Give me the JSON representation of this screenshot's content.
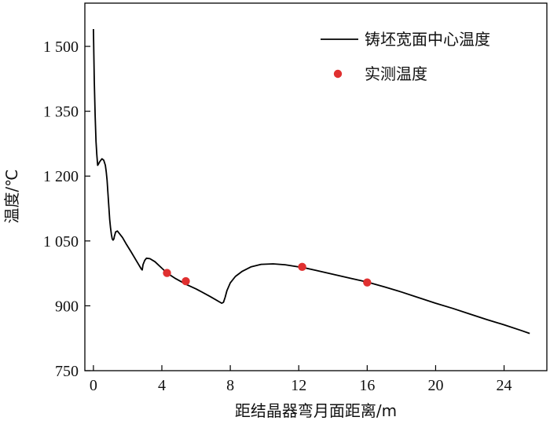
{
  "chart_data": {
    "type": "line",
    "xlabel": "距结晶器弯月面距离/m",
    "ylabel": "温度/℃",
    "xlim": [
      -0.5,
      26.5
    ],
    "ylim": [
      750,
      1600
    ],
    "xticks": [
      0,
      4,
      8,
      12,
      16,
      20,
      24
    ],
    "yticks": [
      750,
      900,
      1050,
      1200,
      1350,
      1500
    ],
    "ytick_labels": [
      "750",
      "900",
      "1 050",
      "1 200",
      "1 350",
      "1 500"
    ],
    "grid": false,
    "legend_position": "top-right",
    "series": [
      {
        "name": "铸坯宽面中心温度",
        "style": "line",
        "color": "#000000",
        "x": [
          0.0,
          0.05,
          0.1,
          0.15,
          0.2,
          0.25,
          0.3,
          0.35,
          0.4,
          0.5,
          0.6,
          0.7,
          0.75,
          0.8,
          0.85,
          0.9,
          0.95,
          1.0,
          1.05,
          1.1,
          1.15,
          1.2,
          1.22,
          1.3,
          1.4,
          1.5,
          1.7,
          1.9,
          2.2,
          2.5,
          2.8,
          2.85,
          2.9,
          3.0,
          3.1,
          3.3,
          3.6,
          4.0,
          4.3,
          4.8,
          5.4,
          6.0,
          6.8,
          7.5,
          7.6,
          7.7,
          7.8,
          8.0,
          8.3,
          8.7,
          9.2,
          9.8,
          10.5,
          11.2,
          12.0,
          12.2,
          13.0,
          14.0,
          15.0,
          16.0,
          17.0,
          18.0,
          19.0,
          20.0,
          21.0,
          22.0,
          23.0,
          24.0,
          25.0,
          25.5
        ],
        "values": [
          1540,
          1420,
          1340,
          1280,
          1250,
          1225,
          1228,
          1232,
          1235,
          1240,
          1237,
          1225,
          1210,
          1190,
          1160,
          1130,
          1100,
          1080,
          1065,
          1055,
          1052,
          1055,
          1060,
          1071,
          1073,
          1068,
          1058,
          1044,
          1025,
          1005,
          985,
          983,
          995,
          1005,
          1010,
          1009,
          1002,
          987,
          976,
          963,
          950,
          939,
          922,
          906,
          908,
          920,
          935,
          953,
          968,
          980,
          990,
          996,
          997,
          995,
          990,
          989,
          982,
          973,
          964,
          955,
          944,
          932,
          919,
          906,
          894,
          881,
          868,
          856,
          843,
          836
        ]
      },
      {
        "name": "实测温度",
        "style": "scatter",
        "color": "#e03030",
        "x": [
          4.3,
          5.4,
          12.2,
          16.0
        ],
        "values": [
          976,
          957,
          990,
          954
        ]
      }
    ]
  }
}
